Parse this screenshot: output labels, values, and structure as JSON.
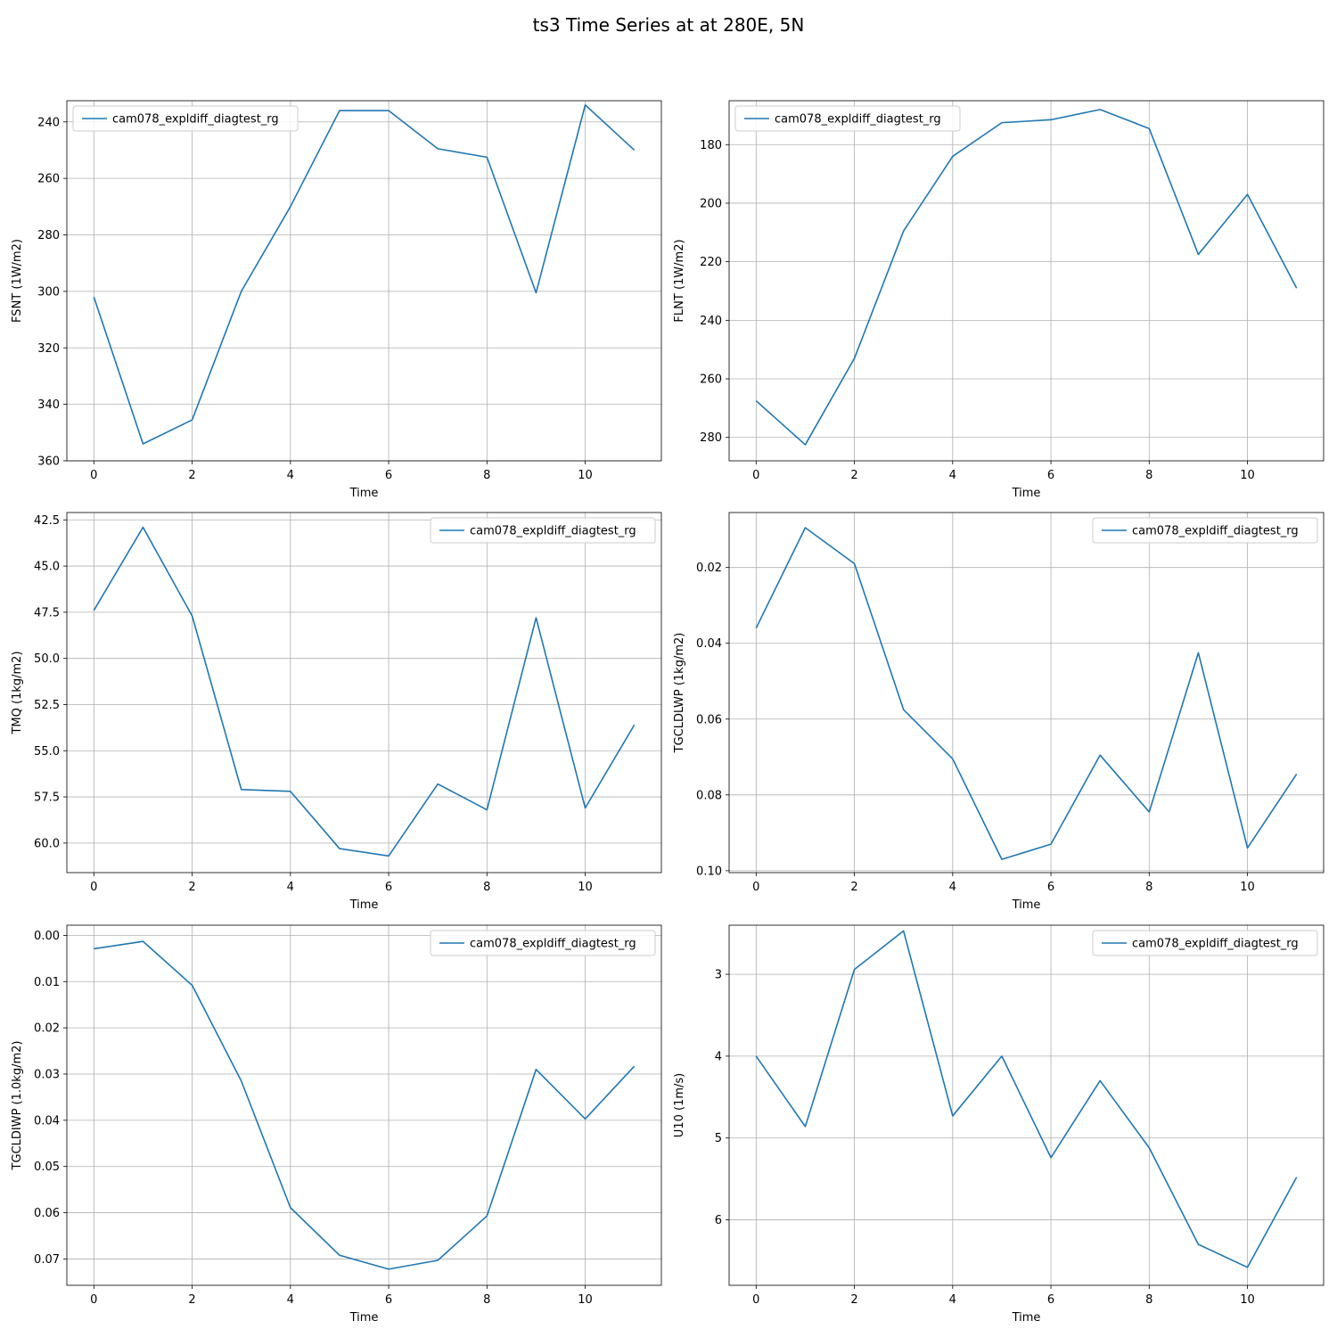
{
  "figure": {
    "title": "ts3 Time Series at at 280E, 5N"
  },
  "colors": {
    "line": "#1f77b4",
    "grid": "#b0b0b0",
    "axis": "#000000",
    "legend_border": "#cccccc"
  },
  "chart_data": [
    {
      "type": "line",
      "xlabel": "Time",
      "ylabel": "FSNT (1W/m2)",
      "xlim": [
        -0.55,
        11.55
      ],
      "ylim": [
        360,
        232.5
      ],
      "xticks": [
        0,
        2,
        4,
        6,
        8,
        10
      ],
      "yticks": [
        240,
        260,
        280,
        300,
        320,
        340,
        360
      ],
      "ytick_labels": [
        "240",
        "260",
        "280",
        "300",
        "320",
        "340",
        "360"
      ],
      "legend_loc": "upper left",
      "grid": true,
      "series": [
        {
          "name": "cam078_expldiff_diagtest_rg",
          "x": [
            0,
            1,
            2,
            3,
            4,
            5,
            6,
            7,
            8,
            9,
            10,
            11
          ],
          "y": [
            302,
            354,
            345.5,
            300,
            270,
            236,
            236,
            249.5,
            252.5,
            300.5,
            234,
            250
          ]
        }
      ]
    },
    {
      "type": "line",
      "xlabel": "Time",
      "ylabel": "FLNT (1W/m2)",
      "xlim": [
        -0.55,
        11.55
      ],
      "ylim": [
        288,
        165
      ],
      "xticks": [
        0,
        2,
        4,
        6,
        8,
        10
      ],
      "yticks": [
        180,
        200,
        220,
        240,
        260,
        280
      ],
      "ytick_labels": [
        "180",
        "200",
        "220",
        "240",
        "260",
        "280"
      ],
      "legend_loc": "upper left",
      "grid": true,
      "series": [
        {
          "name": "cam078_expldiff_diagtest_rg",
          "x": [
            0,
            1,
            2,
            3,
            4,
            5,
            6,
            7,
            8,
            9,
            10,
            11
          ],
          "y": [
            267.5,
            282.5,
            253,
            209.5,
            184,
            172.5,
            171.5,
            168,
            174.5,
            217.5,
            197,
            229
          ]
        }
      ]
    },
    {
      "type": "line",
      "xlabel": "Time",
      "ylabel": "TMQ (1kg/m2)",
      "xlim": [
        -0.55,
        11.55
      ],
      "ylim": [
        61.6,
        42.1
      ],
      "xticks": [
        0,
        2,
        4,
        6,
        8,
        10
      ],
      "yticks": [
        42.5,
        45.0,
        47.5,
        50.0,
        52.5,
        55.0,
        57.5,
        60.0
      ],
      "ytick_labels": [
        "42.5",
        "45.0",
        "47.5",
        "50.0",
        "52.5",
        "55.0",
        "57.5",
        "60.0"
      ],
      "legend_loc": "upper right",
      "grid": true,
      "series": [
        {
          "name": "cam078_expldiff_diagtest_rg",
          "x": [
            0,
            1,
            2,
            3,
            4,
            5,
            6,
            7,
            8,
            9,
            10,
            11
          ],
          "y": [
            47.4,
            42.9,
            47.7,
            57.1,
            57.2,
            60.3,
            60.7,
            56.8,
            58.2,
            47.8,
            58.1,
            53.6
          ]
        }
      ]
    },
    {
      "type": "line",
      "xlabel": "Time",
      "ylabel": "TGCLDLWP (1kg/m2)",
      "xlim": [
        -0.55,
        11.55
      ],
      "ylim": [
        0.1005,
        0.0055
      ],
      "xticks": [
        0,
        2,
        4,
        6,
        8,
        10
      ],
      "yticks": [
        0.02,
        0.04,
        0.06,
        0.08,
        0.1
      ],
      "ytick_labels": [
        "0.02",
        "0.04",
        "0.06",
        "0.08",
        "0.10"
      ],
      "legend_loc": "upper right",
      "grid": true,
      "series": [
        {
          "name": "cam078_expldiff_diagtest_rg",
          "x": [
            0,
            1,
            2,
            3,
            4,
            5,
            6,
            7,
            8,
            9,
            10,
            11
          ],
          "y": [
            0.036,
            0.0095,
            0.019,
            0.0575,
            0.0705,
            0.097,
            0.093,
            0.0695,
            0.0845,
            0.0425,
            0.094,
            0.0745
          ]
        }
      ]
    },
    {
      "type": "line",
      "xlabel": "Time",
      "ylabel": "TGCLDIWP (1.0kg/m2)",
      "xlim": [
        -0.55,
        11.55
      ],
      "ylim": [
        0.0757,
        -0.0022
      ],
      "xticks": [
        0,
        2,
        4,
        6,
        8,
        10
      ],
      "yticks": [
        0.0,
        0.01,
        0.02,
        0.03,
        0.04,
        0.05,
        0.06,
        0.07
      ],
      "ytick_labels": [
        "0.00",
        "0.01",
        "0.02",
        "0.03",
        "0.04",
        "0.05",
        "0.06",
        "0.07"
      ],
      "legend_loc": "upper right",
      "grid": true,
      "series": [
        {
          "name": "cam078_expldiff_diagtest_rg",
          "x": [
            0,
            1,
            2,
            3,
            4,
            5,
            6,
            7,
            8,
            9,
            10,
            11
          ],
          "y": [
            0.0029,
            0.0013,
            0.0108,
            0.0315,
            0.0589,
            0.0692,
            0.0722,
            0.0703,
            0.0607,
            0.029,
            0.0397,
            0.0283
          ]
        }
      ]
    },
    {
      "type": "line",
      "xlabel": "Time",
      "ylabel": "U10 (1m/s)",
      "xlim": [
        -0.55,
        11.55
      ],
      "ylim": [
        6.8,
        2.4
      ],
      "xticks": [
        0,
        2,
        4,
        6,
        8,
        10
      ],
      "yticks": [
        3,
        4,
        5,
        6
      ],
      "ytick_labels": [
        "3",
        "4",
        "5",
        "6"
      ],
      "legend_loc": "upper right",
      "grid": true,
      "series": [
        {
          "name": "cam078_expldiff_diagtest_rg",
          "x": [
            0,
            1,
            2,
            3,
            4,
            5,
            6,
            7,
            8,
            9,
            10,
            11
          ],
          "y": [
            4.0,
            4.86,
            2.94,
            2.47,
            4.73,
            4.0,
            5.24,
            4.3,
            5.12,
            6.3,
            6.58,
            5.48
          ]
        }
      ]
    }
  ]
}
